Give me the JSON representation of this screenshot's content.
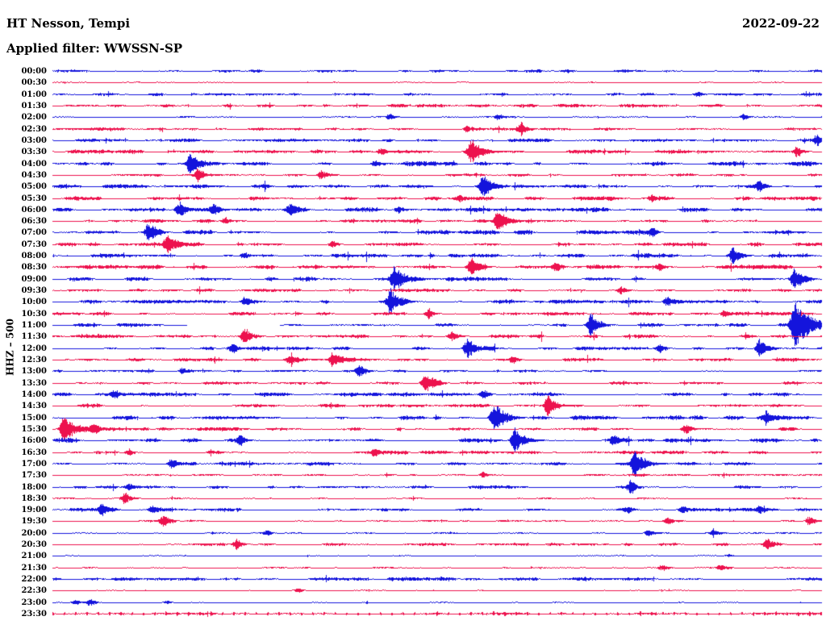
{
  "header": {
    "station_title": "HT Nesson, Tempi",
    "date": "2022-09-22",
    "filter_label": "Applied filter: WWSSN-SP"
  },
  "y_axis_label": "HHZ – 500",
  "colors": {
    "blue": "#1414DC",
    "red": "#ED124E",
    "text": "#000000",
    "background": "#FFFFFF"
  },
  "chart_data": {
    "type": "line",
    "subtype": "helicorder",
    "station": "HT Nesson, Tempi",
    "channel": "HHZ",
    "scale": 500,
    "date": "2022-09-22",
    "filter": "WWSSN-SP",
    "row_minutes": 30,
    "legend": "alternating blue/red traces, one row per 30 minutes, times at left",
    "rows": [
      {
        "t": "00:00",
        "color": "blue",
        "noise": 0.9,
        "events": []
      },
      {
        "t": "00:30",
        "color": "red",
        "noise": 0.35,
        "events": []
      },
      {
        "t": "01:00",
        "color": "blue",
        "noise": 0.85,
        "events": [
          [
            0.84,
            3
          ]
        ]
      },
      {
        "t": "01:30",
        "color": "red",
        "noise": 1.0,
        "events": []
      },
      {
        "t": "02:00",
        "color": "blue",
        "noise": 0.45,
        "events": [
          [
            0.44,
            3
          ],
          [
            0.58,
            3
          ],
          [
            0.9,
            4
          ]
        ]
      },
      {
        "t": "02:30",
        "color": "red",
        "noise": 0.9,
        "events": [
          [
            0.54,
            4
          ],
          [
            0.61,
            7
          ]
        ]
      },
      {
        "t": "03:00",
        "color": "blue",
        "noise": 1.0,
        "events": [
          [
            0.995,
            5
          ]
        ]
      },
      {
        "t": "03:30",
        "color": "red",
        "noise": 1.1,
        "events": [
          [
            0.43,
            4
          ],
          [
            0.545,
            13
          ],
          [
            0.97,
            5
          ]
        ]
      },
      {
        "t": "04:00",
        "color": "blue",
        "noise": 1.3,
        "events": [
          [
            0.18,
            10
          ],
          [
            0.42,
            4
          ]
        ]
      },
      {
        "t": "04:30",
        "color": "red",
        "noise": 0.8,
        "events": [
          [
            0.19,
            7
          ],
          [
            0.35,
            5
          ]
        ]
      },
      {
        "t": "05:00",
        "color": "blue",
        "noise": 1.2,
        "events": [
          [
            0.56,
            12
          ],
          [
            0.92,
            4
          ]
        ]
      },
      {
        "t": "05:30",
        "color": "red",
        "noise": 1.3,
        "events": [
          [
            0.53,
            4
          ],
          [
            0.78,
            4
          ]
        ]
      },
      {
        "t": "06:00",
        "color": "blue",
        "noise": 1.3,
        "events": [
          [
            0.165,
            8
          ],
          [
            0.21,
            6
          ],
          [
            0.31,
            7
          ],
          [
            0.45,
            4
          ]
        ]
      },
      {
        "t": "06:30",
        "color": "red",
        "noise": 1.1,
        "events": [
          [
            0.225,
            4
          ],
          [
            0.58,
            12
          ]
        ]
      },
      {
        "t": "07:00",
        "color": "blue",
        "noise": 1.2,
        "events": [
          [
            0.125,
            9
          ],
          [
            0.78,
            4
          ]
        ]
      },
      {
        "t": "07:30",
        "color": "red",
        "noise": 1.1,
        "events": [
          [
            0.15,
            10
          ],
          [
            0.365,
            4
          ]
        ]
      },
      {
        "t": "08:00",
        "color": "blue",
        "noise": 1.2,
        "events": [
          [
            0.25,
            4
          ],
          [
            0.885,
            9
          ]
        ]
      },
      {
        "t": "08:30",
        "color": "red",
        "noise": 1.2,
        "events": [
          [
            0.545,
            10
          ],
          [
            0.655,
            5
          ],
          [
            0.79,
            5
          ]
        ]
      },
      {
        "t": "09:00",
        "color": "blue",
        "noise": 1.2,
        "events": [
          [
            0.445,
            12
          ],
          [
            0.965,
            10
          ]
        ]
      },
      {
        "t": "09:30",
        "color": "red",
        "noise": 0.9,
        "events": [
          [
            0.74,
            4
          ]
        ]
      },
      {
        "t": "10:00",
        "color": "blue",
        "noise": 1.2,
        "events": [
          [
            0.25,
            4
          ],
          [
            0.44,
            12
          ],
          [
            0.8,
            6
          ]
        ]
      },
      {
        "t": "10:30",
        "color": "red",
        "noise": 1.0,
        "events": [
          [
            0.49,
            5
          ],
          [
            0.875,
            4
          ]
        ]
      },
      {
        "t": "11:00",
        "color": "blue",
        "noise": 1.0,
        "gap": [
          0.175,
          0.295
        ],
        "events": [
          [
            0.7,
            11
          ],
          [
            0.965,
            26
          ]
        ]
      },
      {
        "t": "11:30",
        "color": "red",
        "noise": 1.1,
        "events": [
          [
            0.25,
            9
          ],
          [
            0.52,
            5
          ]
        ]
      },
      {
        "t": "12:00",
        "color": "blue",
        "noise": 1.1,
        "events": [
          [
            0.235,
            5
          ],
          [
            0.54,
            11
          ],
          [
            0.79,
            5
          ],
          [
            0.92,
            9
          ]
        ]
      },
      {
        "t": "12:30",
        "color": "red",
        "noise": 1.0,
        "events": [
          [
            0.31,
            4
          ],
          [
            0.365,
            8
          ],
          [
            0.6,
            4
          ]
        ]
      },
      {
        "t": "13:00",
        "color": "blue",
        "noise": 0.8,
        "events": [
          [
            0.17,
            4
          ],
          [
            0.4,
            7
          ]
        ]
      },
      {
        "t": "13:30",
        "color": "red",
        "noise": 0.9,
        "events": [
          [
            0.485,
            11
          ]
        ]
      },
      {
        "t": "14:00",
        "color": "blue",
        "noise": 1.1,
        "events": [
          [
            0.08,
            4
          ],
          [
            0.56,
            4
          ]
        ]
      },
      {
        "t": "14:30",
        "color": "red",
        "noise": 1.0,
        "events": [
          [
            0.645,
            10
          ]
        ]
      },
      {
        "t": "15:00",
        "color": "blue",
        "noise": 1.3,
        "events": [
          [
            0.575,
            13
          ],
          [
            0.93,
            5
          ]
        ]
      },
      {
        "t": "15:30",
        "color": "red",
        "noise": 1.1,
        "events": [
          [
            0.015,
            15
          ],
          [
            0.055,
            6
          ],
          [
            0.824,
            6
          ]
        ]
      },
      {
        "t": "16:00",
        "color": "blue",
        "noise": 1.2,
        "events": [
          [
            0.245,
            5
          ],
          [
            0.602,
            13
          ],
          [
            0.73,
            5
          ]
        ]
      },
      {
        "t": "16:30",
        "color": "red",
        "noise": 1.0,
        "events": [
          [
            0.1,
            4
          ],
          [
            0.42,
            4
          ]
        ]
      },
      {
        "t": "17:00",
        "color": "blue",
        "noise": 1.0,
        "events": [
          [
            0.155,
            5
          ],
          [
            0.758,
            13
          ]
        ]
      },
      {
        "t": "17:30",
        "color": "red",
        "noise": 0.8,
        "events": [
          [
            0.56,
            3
          ]
        ]
      },
      {
        "t": "18:00",
        "color": "blue",
        "noise": 0.9,
        "events": [
          [
            0.1,
            4
          ],
          [
            0.753,
            7
          ]
        ]
      },
      {
        "t": "18:30",
        "color": "red",
        "noise": 0.6,
        "events": [
          [
            0.095,
            6
          ]
        ]
      },
      {
        "t": "19:00",
        "color": "blue",
        "noise": 1.0,
        "events": [
          [
            0.065,
            6
          ],
          [
            0.13,
            4
          ],
          [
            0.75,
            4
          ],
          [
            0.82,
            4
          ],
          [
            0.92,
            4
          ]
        ]
      },
      {
        "t": "19:30",
        "color": "red",
        "noise": 0.55,
        "events": [
          [
            0.145,
            6
          ],
          [
            0.8,
            5
          ],
          [
            0.985,
            5
          ]
        ]
      },
      {
        "t": "20:00",
        "color": "blue",
        "noise": 0.45,
        "events": [
          [
            0.28,
            3
          ],
          [
            0.775,
            4
          ],
          [
            0.86,
            3
          ]
        ]
      },
      {
        "t": "20:30",
        "color": "red",
        "noise": 0.8,
        "events": [
          [
            0.24,
            5
          ],
          [
            0.93,
            5
          ]
        ]
      },
      {
        "t": "21:00",
        "color": "blue",
        "noise": 0.35,
        "events": [
          [
            0.88,
            2
          ]
        ]
      },
      {
        "t": "21:30",
        "color": "red",
        "noise": 0.45,
        "events": [
          [
            0.795,
            3
          ],
          [
            0.87,
            3
          ]
        ]
      },
      {
        "t": "22:00",
        "color": "blue",
        "noise": 1.15,
        "events": []
      },
      {
        "t": "22:30",
        "color": "red",
        "noise": 0.35,
        "events": [
          [
            0.32,
            3
          ]
        ]
      },
      {
        "t": "23:00",
        "color": "blue",
        "noise": 0.35,
        "events": [
          [
            0.03,
            3
          ],
          [
            0.05,
            4
          ],
          [
            0.15,
            2
          ]
        ]
      },
      {
        "t": "23:30",
        "color": "red",
        "noise": 0.7,
        "events": [],
        "ticks": true
      }
    ]
  }
}
